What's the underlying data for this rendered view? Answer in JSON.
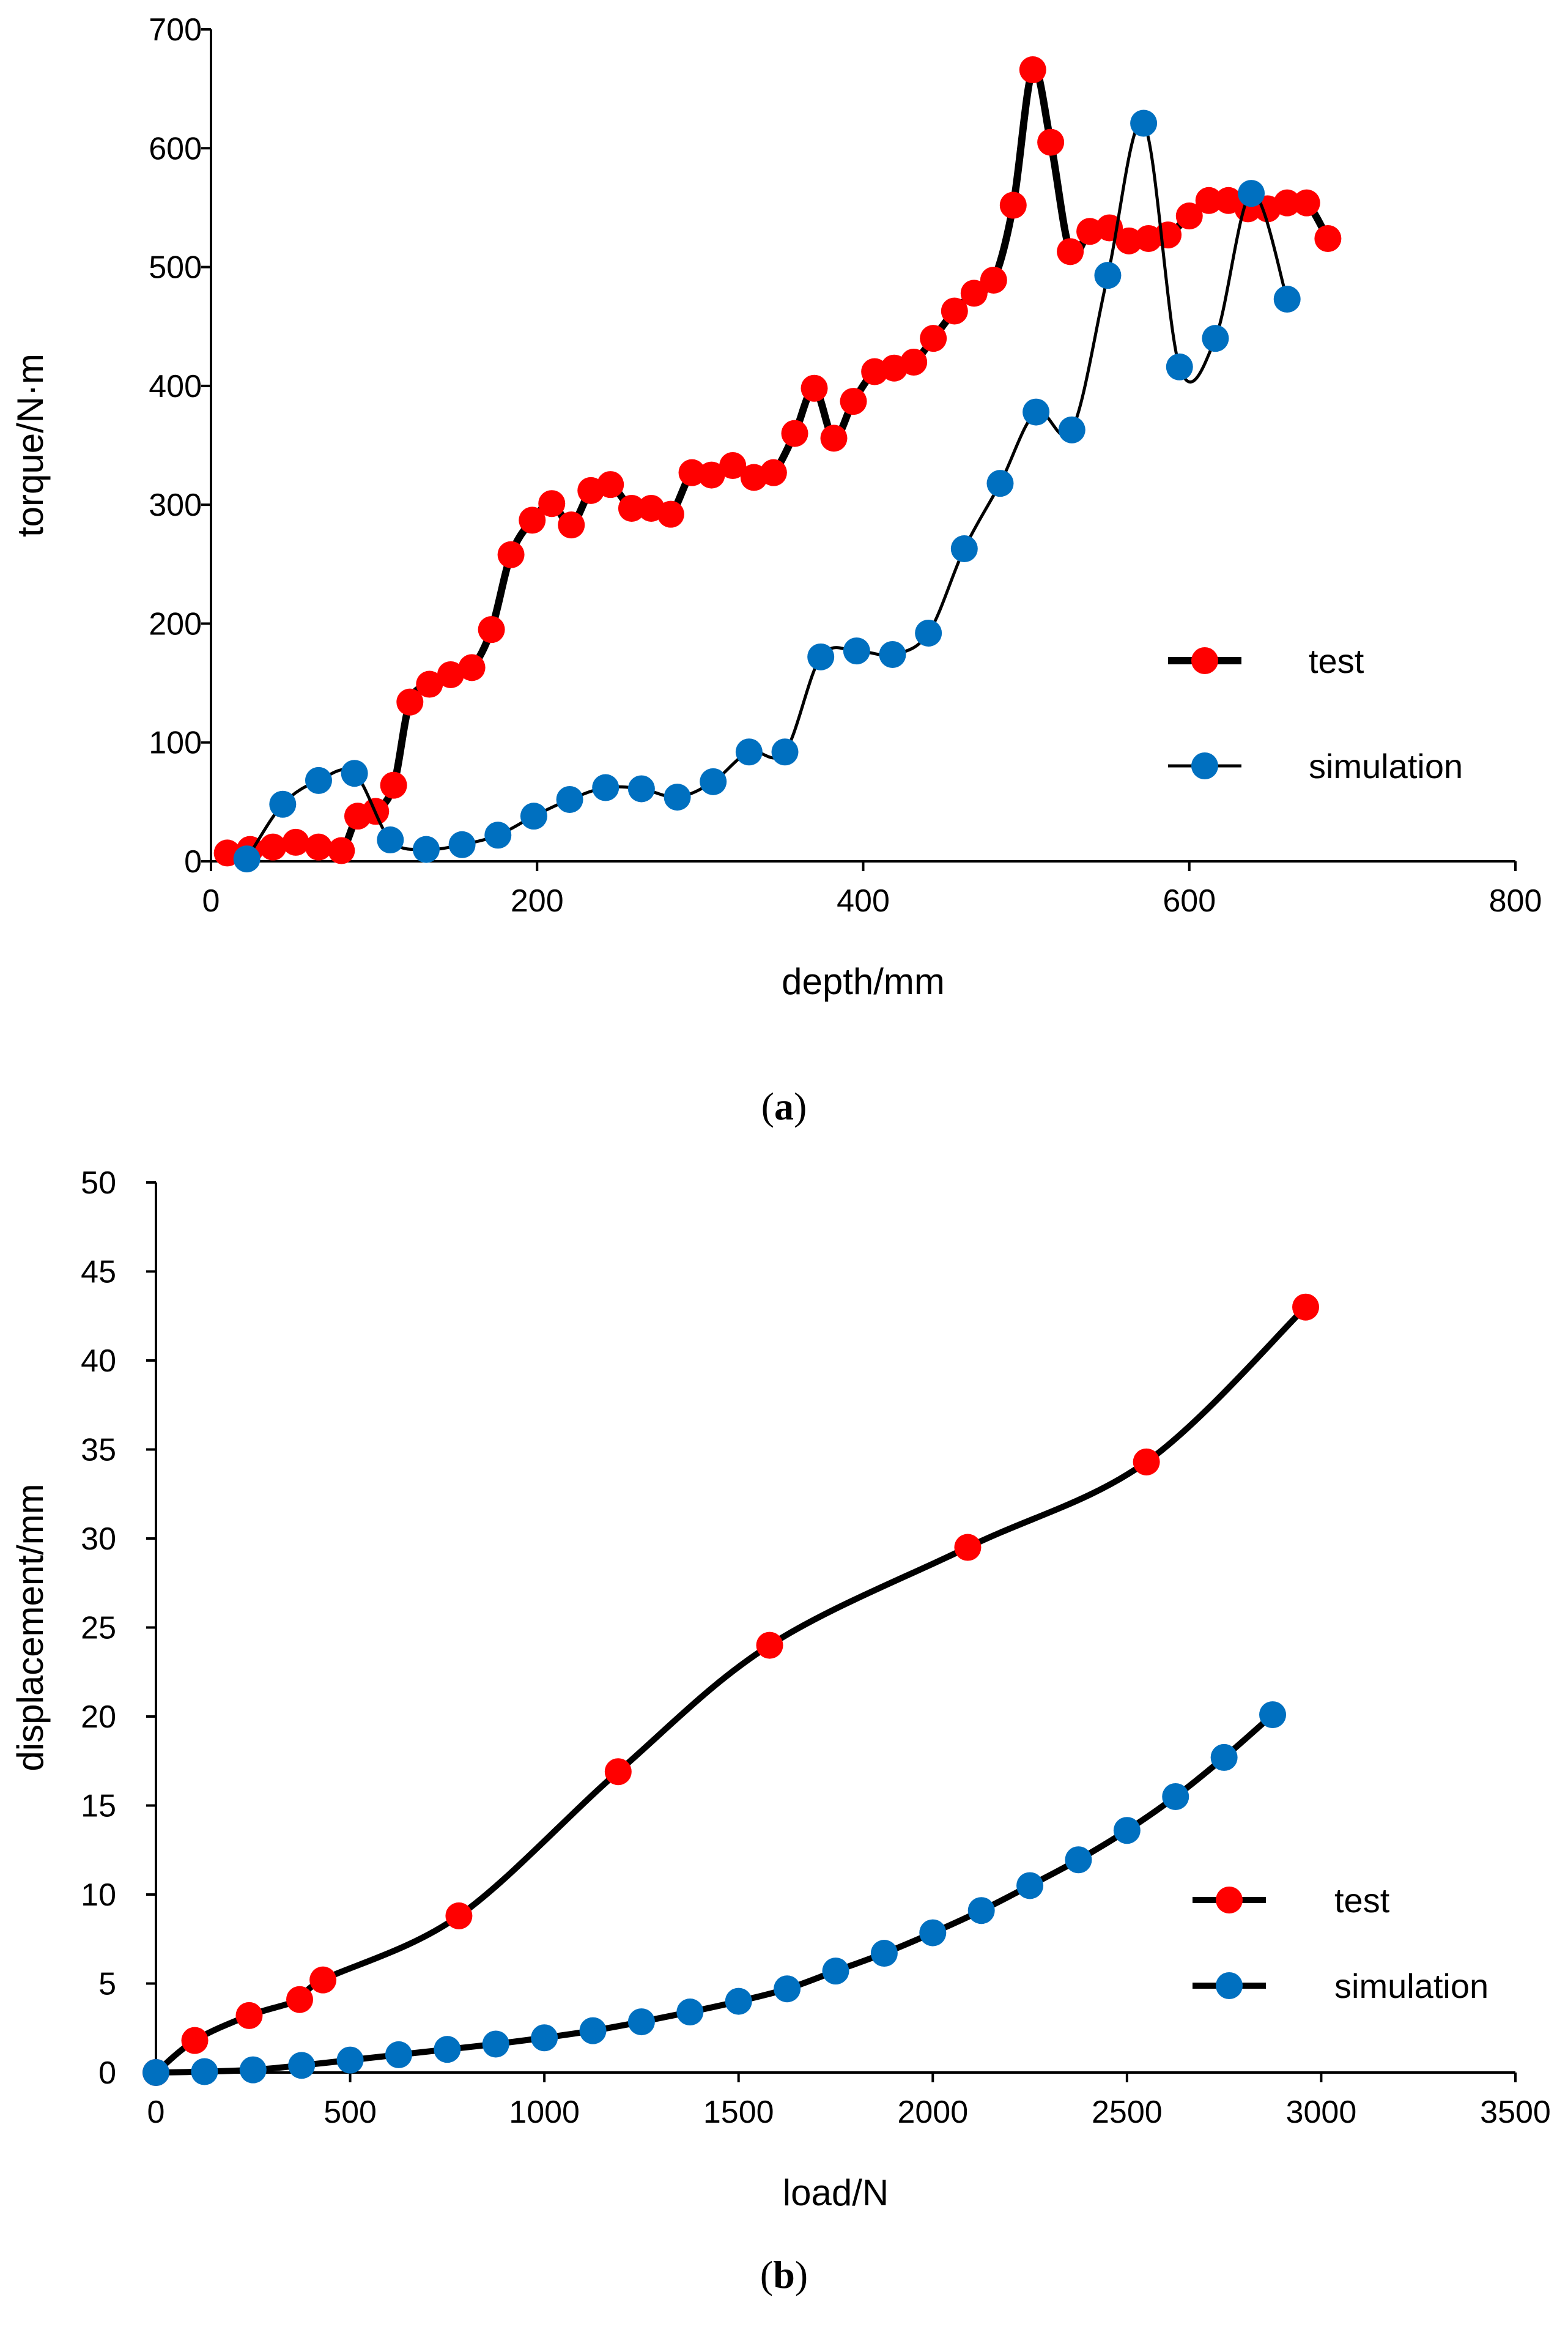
{
  "colors": {
    "test": "#ff0000",
    "simulation": "#0070c0",
    "line": "#000000"
  },
  "chart_data": [
    {
      "type": "line",
      "panel_label": "a",
      "xlabel": "depth/mm",
      "ylabel": "torque/N·m",
      "xlim": [
        0,
        800
      ],
      "ylim": [
        0,
        700
      ],
      "xticks": [
        0,
        200,
        400,
        600,
        800
      ],
      "yticks": [
        0,
        100,
        200,
        300,
        400,
        500,
        600,
        700
      ],
      "legend": {
        "position": "right-middle"
      },
      "series": [
        {
          "name": "test",
          "x": [
            10,
            24,
            38,
            52,
            66,
            80,
            90,
            101,
            112,
            122,
            134,
            147,
            160,
            172,
            184,
            197,
            209,
            221,
            233,
            245,
            258,
            270,
            282,
            295,
            307,
            320,
            333,
            345,
            358,
            370,
            382,
            394,
            407,
            419,
            431,
            443,
            456,
            468,
            480,
            492,
            504,
            515,
            527,
            539,
            551,
            563,
            575,
            587,
            600,
            612,
            624,
            636,
            648,
            660,
            672,
            685
          ],
          "y": [
            7,
            10,
            12,
            16,
            12,
            9,
            38,
            42,
            64,
            134,
            149,
            157,
            163,
            195,
            258,
            287,
            301,
            283,
            312,
            317,
            297,
            297,
            292,
            327,
            325,
            333,
            323,
            327,
            360,
            398,
            356,
            387,
            412,
            415,
            420,
            440,
            463,
            478,
            489,
            552,
            666,
            605,
            513,
            530,
            533,
            522,
            524,
            527,
            543,
            556,
            556,
            549,
            549,
            554,
            554,
            524
          ]
        },
        {
          "name": "simulation",
          "x": [
            22,
            44,
            66,
            88,
            110,
            132,
            154,
            176,
            198,
            220,
            242,
            264,
            286,
            308,
            330,
            352,
            374,
            396,
            418,
            440,
            462,
            484,
            506,
            528,
            550,
            572,
            594,
            616,
            638,
            660
          ],
          "y": [
            2,
            48,
            68,
            74,
            18,
            10,
            14,
            22,
            38,
            52,
            62,
            61,
            54,
            67,
            92,
            92,
            172,
            177,
            174,
            192,
            263,
            318,
            378,
            363,
            493,
            621,
            416,
            440,
            562,
            473
          ]
        }
      ]
    },
    {
      "type": "line",
      "panel_label": "b",
      "xlabel": "load/N",
      "ylabel": "displacement/mm",
      "xlim": [
        0,
        3500
      ],
      "ylim": [
        0,
        50
      ],
      "xticks": [
        0,
        500,
        1000,
        1500,
        2000,
        2500,
        3000,
        3500
      ],
      "yticks": [
        0,
        5,
        10,
        15,
        20,
        25,
        30,
        35,
        40,
        45,
        50
      ],
      "legend": {
        "position": "bottom-right"
      },
      "series": [
        {
          "name": "test",
          "x": [
            0,
            100,
            240,
            370,
            430,
            780,
            1190,
            1580,
            2090,
            2550,
            2960
          ],
          "y": [
            0,
            1.8,
            3.2,
            4.1,
            5.2,
            8.8,
            16.9,
            24.0,
            29.5,
            34.3,
            43.0
          ]
        },
        {
          "name": "simulation",
          "x": [
            0,
            125,
            250,
            375,
            500,
            625,
            750,
            875,
            1000,
            1125,
            1250,
            1375,
            1500,
            1625,
            1750,
            1875,
            2000,
            2125,
            2250,
            2375,
            2500,
            2625,
            2750,
            2875
          ],
          "y": [
            0,
            0.05,
            0.15,
            0.4,
            0.7,
            1.0,
            1.3,
            1.6,
            1.95,
            2.35,
            2.85,
            3.4,
            4.0,
            4.7,
            5.7,
            6.7,
            7.85,
            9.1,
            10.5,
            11.95,
            13.6,
            15.5,
            17.7,
            20.1
          ]
        }
      ]
    }
  ]
}
